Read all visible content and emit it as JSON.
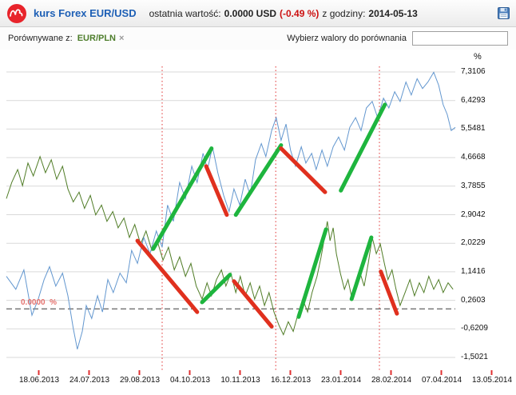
{
  "header": {
    "title": "kurs Forex EUR/USD",
    "last_value_label": "ostatnia wartość:",
    "last_value": "0.0000 USD",
    "change": "(-0.49 %)",
    "time_label": "z godziny:",
    "time_value": "2014-05-13"
  },
  "toolbar": {
    "compare_label": "Porównywane z:",
    "compare_tag": "EUR/PLN",
    "remove_icon": "×",
    "picker_label": "Wybierz walory do porównania",
    "picker_value": "",
    "tag_color": "#4d7d2b"
  },
  "chart_data": {
    "type": "line",
    "unit_label": "%",
    "ymin": -1.5021,
    "ymax": 7.3106,
    "grid": true,
    "grid_color": "#d9d9d9",
    "marker_color": "#e03030",
    "zero_line_color": "#3c3c3c",
    "zero_label_color": "#e5736f",
    "zero_line_label": "0.0000  %",
    "zero_value": 0,
    "y_tick_labels": [
      "7,3106",
      "6,4293",
      "5,5481",
      "4,6668",
      "3,7855",
      "2,9042",
      "2,0229",
      "1,1416",
      "0,2603",
      "-0,6209",
      "-1,5021"
    ],
    "y_tick_values": [
      7.3106,
      6.4293,
      5.5481,
      4.6668,
      3.7855,
      2.9042,
      2.0229,
      1.1416,
      0.2603,
      -0.6209,
      -1.5021
    ],
    "x_tick_labels": [
      "18.06.2013",
      "24.07.2013",
      "29.08.2013",
      "04.10.2013",
      "10.11.2013",
      "16.12.2013",
      "23.01.2014",
      "28.02.2014",
      "07.04.2014",
      "13.05.2014"
    ],
    "vertical_markers": [
      0.347,
      0.6,
      0.831
    ],
    "series": [
      {
        "name": "EUR/PLN",
        "color": "#517d28",
        "points": [
          [
            0.0,
            3.4
          ],
          [
            0.012,
            3.9
          ],
          [
            0.025,
            4.3
          ],
          [
            0.036,
            3.8
          ],
          [
            0.048,
            4.5
          ],
          [
            0.06,
            4.1
          ],
          [
            0.075,
            4.7
          ],
          [
            0.087,
            4.2
          ],
          [
            0.1,
            4.6
          ],
          [
            0.112,
            4.0
          ],
          [
            0.125,
            4.4
          ],
          [
            0.137,
            3.7
          ],
          [
            0.149,
            3.3
          ],
          [
            0.162,
            3.6
          ],
          [
            0.174,
            3.1
          ],
          [
            0.187,
            3.5
          ],
          [
            0.199,
            2.9
          ],
          [
            0.212,
            3.2
          ],
          [
            0.224,
            2.7
          ],
          [
            0.237,
            3.0
          ],
          [
            0.249,
            2.5
          ],
          [
            0.262,
            2.8
          ],
          [
            0.274,
            2.2
          ],
          [
            0.286,
            2.6
          ],
          [
            0.299,
            2.0
          ],
          [
            0.311,
            2.4
          ],
          [
            0.324,
            1.8
          ],
          [
            0.336,
            2.1
          ],
          [
            0.349,
            1.5
          ],
          [
            0.361,
            1.9
          ],
          [
            0.374,
            1.2
          ],
          [
            0.386,
            1.6
          ],
          [
            0.399,
            1.0
          ],
          [
            0.411,
            1.4
          ],
          [
            0.423,
            0.7
          ],
          [
            0.436,
            0.3
          ],
          [
            0.447,
            0.8
          ],
          [
            0.457,
            0.4
          ],
          [
            0.468,
            0.9
          ],
          [
            0.479,
            1.2
          ],
          [
            0.489,
            0.7
          ],
          [
            0.5,
            1.1
          ],
          [
            0.511,
            0.5
          ],
          [
            0.521,
            1.0
          ],
          [
            0.532,
            0.4
          ],
          [
            0.543,
            0.8
          ],
          [
            0.553,
            0.3
          ],
          [
            0.564,
            0.7
          ],
          [
            0.575,
            0.1
          ],
          [
            0.585,
            0.5
          ],
          [
            0.596,
            -0.1
          ],
          [
            0.607,
            -0.5
          ],
          [
            0.617,
            -0.8
          ],
          [
            0.628,
            -0.4
          ],
          [
            0.639,
            -0.7
          ],
          [
            0.649,
            -0.2
          ],
          [
            0.66,
            0.3
          ],
          [
            0.671,
            -0.1
          ],
          [
            0.681,
            0.5
          ],
          [
            0.692,
            1.0
          ],
          [
            0.701,
            1.6
          ],
          [
            0.71,
            2.3
          ],
          [
            0.715,
            2.7
          ],
          [
            0.721,
            2.1
          ],
          [
            0.728,
            2.5
          ],
          [
            0.735,
            1.7
          ],
          [
            0.744,
            1.1
          ],
          [
            0.753,
            0.6
          ],
          [
            0.761,
            0.9
          ],
          [
            0.77,
            0.3
          ],
          [
            0.779,
            0.7
          ],
          [
            0.788,
            1.1
          ],
          [
            0.797,
            0.7
          ],
          [
            0.806,
            1.4
          ],
          [
            0.815,
            2.2
          ],
          [
            0.824,
            1.7
          ],
          [
            0.833,
            2.0
          ],
          [
            0.842,
            1.4
          ],
          [
            0.85,
            0.9
          ],
          [
            0.859,
            1.2
          ],
          [
            0.868,
            0.6
          ],
          [
            0.877,
            0.1
          ],
          [
            0.888,
            0.5
          ],
          [
            0.899,
            0.9
          ],
          [
            0.909,
            0.4
          ],
          [
            0.92,
            0.8
          ],
          [
            0.93,
            0.5
          ],
          [
            0.941,
            1.0
          ],
          [
            0.952,
            0.6
          ],
          [
            0.963,
            0.9
          ],
          [
            0.973,
            0.5
          ],
          [
            0.984,
            0.8
          ],
          [
            0.995,
            0.6
          ]
        ]
      },
      {
        "name": "EUR/USD",
        "color": "#6397cf",
        "points": [
          [
            0.0,
            1.0
          ],
          [
            0.021,
            0.6
          ],
          [
            0.039,
            1.2
          ],
          [
            0.057,
            -0.2
          ],
          [
            0.071,
            0.3
          ],
          [
            0.084,
            0.9
          ],
          [
            0.096,
            1.3
          ],
          [
            0.11,
            0.7
          ],
          [
            0.125,
            1.1
          ],
          [
            0.137,
            0.4
          ],
          [
            0.149,
            -0.6
          ],
          [
            0.158,
            -1.25
          ],
          [
            0.169,
            -0.7
          ],
          [
            0.178,
            0.1
          ],
          [
            0.19,
            -0.3
          ],
          [
            0.203,
            0.4
          ],
          [
            0.214,
            -0.1
          ],
          [
            0.226,
            0.9
          ],
          [
            0.238,
            0.5
          ],
          [
            0.253,
            1.1
          ],
          [
            0.267,
            0.8
          ],
          [
            0.279,
            1.8
          ],
          [
            0.292,
            1.4
          ],
          [
            0.306,
            2.2
          ],
          [
            0.32,
            1.7
          ],
          [
            0.334,
            2.4
          ],
          [
            0.347,
            1.9
          ],
          [
            0.359,
            3.2
          ],
          [
            0.372,
            2.7
          ],
          [
            0.386,
            3.9
          ],
          [
            0.399,
            3.4
          ],
          [
            0.413,
            4.4
          ],
          [
            0.425,
            3.9
          ],
          [
            0.438,
            4.8
          ],
          [
            0.448,
            4.3
          ],
          [
            0.459,
            5.0
          ],
          [
            0.471,
            4.2
          ],
          [
            0.484,
            3.5
          ],
          [
            0.496,
            3.0
          ],
          [
            0.507,
            3.7
          ],
          [
            0.52,
            3.2
          ],
          [
            0.532,
            4.0
          ],
          [
            0.543,
            3.5
          ],
          [
            0.555,
            4.6
          ],
          [
            0.568,
            5.1
          ],
          [
            0.578,
            4.7
          ],
          [
            0.591,
            5.5
          ],
          [
            0.601,
            5.9
          ],
          [
            0.612,
            5.2
          ],
          [
            0.623,
            5.7
          ],
          [
            0.633,
            4.9
          ],
          [
            0.644,
            4.4
          ],
          [
            0.657,
            5.0
          ],
          [
            0.667,
            4.5
          ],
          [
            0.68,
            4.8
          ],
          [
            0.69,
            4.3
          ],
          [
            0.703,
            4.9
          ],
          [
            0.715,
            4.4
          ],
          [
            0.728,
            5.0
          ],
          [
            0.74,
            5.3
          ],
          [
            0.753,
            4.9
          ],
          [
            0.765,
            5.6
          ],
          [
            0.778,
            5.9
          ],
          [
            0.79,
            5.5
          ],
          [
            0.802,
            6.2
          ],
          [
            0.815,
            6.4
          ],
          [
            0.827,
            5.9
          ],
          [
            0.84,
            6.5
          ],
          [
            0.852,
            6.2
          ],
          [
            0.865,
            6.7
          ],
          [
            0.877,
            6.4
          ],
          [
            0.89,
            7.0
          ],
          [
            0.902,
            6.6
          ],
          [
            0.915,
            7.1
          ],
          [
            0.927,
            6.8
          ],
          [
            0.939,
            7.0
          ],
          [
            0.952,
            7.3
          ],
          [
            0.963,
            6.9
          ],
          [
            0.973,
            6.3
          ],
          [
            0.982,
            6.0
          ],
          [
            0.991,
            5.5
          ],
          [
            1.0,
            5.6
          ]
        ]
      }
    ],
    "trend_lines": [
      {
        "color": "#1eb53e",
        "from": [
          0.327,
          1.85
        ],
        "to": [
          0.457,
          4.95
        ]
      },
      {
        "color": "#1eb53e",
        "from": [
          0.511,
          2.9
        ],
        "to": [
          0.612,
          5.05
        ]
      },
      {
        "color": "#1eb53e",
        "from": [
          0.745,
          3.65
        ],
        "to": [
          0.843,
          6.3
        ]
      },
      {
        "color": "#1eb53e",
        "from": [
          0.436,
          0.2
        ],
        "to": [
          0.498,
          1.05
        ]
      },
      {
        "color": "#1eb53e",
        "from": [
          0.651,
          -0.25
        ],
        "to": [
          0.712,
          2.45
        ]
      },
      {
        "color": "#1eb53e",
        "from": [
          0.769,
          0.3
        ],
        "to": [
          0.813,
          2.2
        ]
      },
      {
        "color": "#e0301e",
        "from": [
          0.292,
          2.1
        ],
        "to": [
          0.425,
          -0.1
        ]
      },
      {
        "color": "#e0301e",
        "from": [
          0.445,
          4.4
        ],
        "to": [
          0.491,
          2.9
        ]
      },
      {
        "color": "#e0301e",
        "from": [
          0.612,
          4.95
        ],
        "to": [
          0.71,
          3.6
        ]
      },
      {
        "color": "#e0301e",
        "from": [
          0.507,
          0.85
        ],
        "to": [
          0.591,
          -0.55
        ]
      },
      {
        "color": "#e0301e",
        "from": [
          0.834,
          1.15
        ],
        "to": [
          0.87,
          -0.15
        ]
      }
    ]
  }
}
